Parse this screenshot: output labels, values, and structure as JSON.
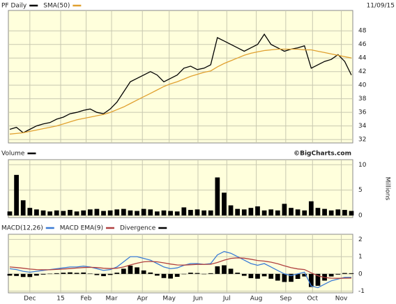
{
  "chart_data": [
    {
      "type": "line",
      "date": "11/09/15",
      "ylim": [
        31.5,
        51
      ],
      "yticks": [
        32,
        34,
        36,
        38,
        40,
        42,
        44,
        46,
        48
      ],
      "xlim": [
        0,
        51
      ],
      "grid": true,
      "series": [
        {
          "name": "PF Daily",
          "color": "#000000",
          "kind": "line",
          "values": [
            33.5,
            33.8,
            33.0,
            33.5,
            34.0,
            34.3,
            34.5,
            35.0,
            35.3,
            35.8,
            36.0,
            36.3,
            36.5,
            36.0,
            35.8,
            36.5,
            37.5,
            39.0,
            40.5,
            41.0,
            41.5,
            42.0,
            41.5,
            40.5,
            41.0,
            41.5,
            42.5,
            42.8,
            42.3,
            42.5,
            43.0,
            47.0,
            46.5,
            46.0,
            45.5,
            45.0,
            45.5,
            46.0,
            47.5,
            46.0,
            45.5,
            45.0,
            45.3,
            45.5,
            45.8,
            42.5,
            43.0,
            43.5,
            43.8,
            44.5,
            43.5,
            41.5
          ]
        },
        {
          "name": "SMA(50)",
          "color": "#e0a030",
          "kind": "line",
          "values": [
            32.8,
            32.9,
            33.0,
            33.2,
            33.4,
            33.6,
            33.8,
            34.0,
            34.3,
            34.6,
            34.9,
            35.1,
            35.3,
            35.5,
            35.7,
            36.0,
            36.4,
            36.8,
            37.3,
            37.8,
            38.3,
            38.8,
            39.3,
            39.8,
            40.2,
            40.5,
            40.9,
            41.3,
            41.6,
            41.9,
            42.1,
            42.7,
            43.2,
            43.6,
            44.0,
            44.4,
            44.7,
            44.9,
            45.1,
            45.2,
            45.3,
            45.3,
            45.3,
            45.3,
            45.2,
            45.2,
            45.0,
            44.8,
            44.6,
            44.4,
            44.2,
            44.0
          ]
        }
      ]
    },
    {
      "type": "bar",
      "title": "Volume",
      "watermark": "©BigCharts.com",
      "ylabel": "Millions",
      "ylim": [
        -0.4,
        11
      ],
      "yticks": [
        0,
        5,
        10
      ],
      "xlim": [
        0,
        51
      ],
      "grid": true,
      "color": "#000000",
      "values": [
        0.8,
        8,
        3,
        1.5,
        1.2,
        1,
        0.8,
        1,
        0.9,
        1.1,
        0.8,
        1,
        1.2,
        1.3,
        0.9,
        1,
        1.2,
        1.3,
        1,
        0.9,
        1.3,
        1.2,
        0.8,
        1,
        0.9,
        0.8,
        1.6,
        1.1,
        1.2,
        1,
        1,
        7.5,
        4.5,
        2,
        1.3,
        1.2,
        1.5,
        1.8,
        1,
        1.2,
        1,
        2.3,
        1.5,
        1.2,
        1,
        2.8,
        1.5,
        1.3,
        1,
        1.2,
        1.1,
        0.9
      ]
    },
    {
      "type": "line",
      "ylim": [
        -1.1,
        2.3
      ],
      "yticks": [
        -1,
        0,
        1,
        2
      ],
      "xlim": [
        0,
        51
      ],
      "grid": true,
      "xticks": [
        {
          "value": 3,
          "label": "Dec"
        },
        {
          "value": 7.6,
          "label": "15"
        },
        {
          "value": 11.4,
          "label": "Feb"
        },
        {
          "value": 15.2,
          "label": "Mar"
        },
        {
          "value": 19.8,
          "label": "Apr"
        },
        {
          "value": 23.8,
          "label": "May"
        },
        {
          "value": 28.1,
          "label": "Jun"
        },
        {
          "value": 32.4,
          "label": "Jul"
        },
        {
          "value": 36.8,
          "label": "Aug"
        },
        {
          "value": 41.2,
          "label": "Sep"
        },
        {
          "value": 45.2,
          "label": "Oct"
        },
        {
          "value": 49.5,
          "label": "Nov"
        }
      ],
      "series": [
        {
          "name": "MACD(12,26)",
          "color": "#3a7bd5",
          "kind": "line",
          "values": [
            0.3,
            0.25,
            0.15,
            0.1,
            0.15,
            0.2,
            0.25,
            0.3,
            0.35,
            0.4,
            0.4,
            0.45,
            0.4,
            0.3,
            0.2,
            0.25,
            0.4,
            0.7,
            1.0,
            1.0,
            0.9,
            0.8,
            0.6,
            0.4,
            0.3,
            0.35,
            0.5,
            0.6,
            0.6,
            0.55,
            0.6,
            1.1,
            1.3,
            1.2,
            1.0,
            0.8,
            0.6,
            0.5,
            0.6,
            0.4,
            0.2,
            0.0,
            -0.1,
            0.0,
            0.1,
            -0.7,
            -0.8,
            -0.6,
            -0.4,
            -0.3,
            -0.2,
            -0.2
          ]
        },
        {
          "name": "MACD EMA(9)",
          "color": "#b04040",
          "kind": "line",
          "values": [
            0.4,
            0.37,
            0.33,
            0.28,
            0.25,
            0.24,
            0.24,
            0.26,
            0.28,
            0.31,
            0.34,
            0.37,
            0.38,
            0.37,
            0.33,
            0.31,
            0.33,
            0.4,
            0.52,
            0.62,
            0.7,
            0.72,
            0.7,
            0.64,
            0.57,
            0.52,
            0.51,
            0.53,
            0.55,
            0.55,
            0.56,
            0.66,
            0.8,
            0.9,
            0.93,
            0.91,
            0.85,
            0.78,
            0.74,
            0.68,
            0.59,
            0.47,
            0.36,
            0.29,
            0.25,
            0.06,
            -0.11,
            -0.21,
            -0.25,
            -0.26,
            -0.25,
            -0.24
          ]
        },
        {
          "name": "Divergence",
          "color": "#000000",
          "kind": "bar",
          "values": [
            -0.1,
            -0.12,
            -0.18,
            -0.18,
            -0.1,
            -0.04,
            0.01,
            0.04,
            0.07,
            0.09,
            0.06,
            0.08,
            0.02,
            -0.07,
            -0.13,
            -0.06,
            0.07,
            0.3,
            0.48,
            0.38,
            0.2,
            0.08,
            -0.1,
            -0.24,
            -0.27,
            -0.17,
            -0.01,
            0.07,
            0.05,
            0,
            0.04,
            0.44,
            0.5,
            0.3,
            0.07,
            -0.11,
            -0.25,
            -0.28,
            -0.14,
            -0.28,
            -0.39,
            -0.47,
            -0.46,
            -0.29,
            -0.15,
            -0.76,
            -0.69,
            -0.39,
            -0.15,
            -0.04,
            0.05,
            0.04
          ]
        }
      ]
    }
  ]
}
